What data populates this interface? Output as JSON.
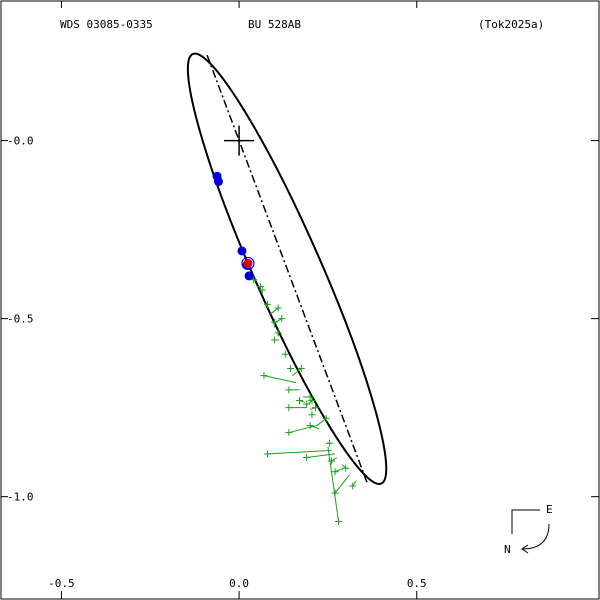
{
  "header": {
    "left": "WDS 03085-0335",
    "center": "BU  528AB",
    "right": "(Tok2025a)"
  },
  "compass": {
    "east": "E",
    "north": "N"
  },
  "colors": {
    "axes": "#000000",
    "orbit": "#000000",
    "observations": "#1aa01a",
    "points": "#0000dd",
    "predicted": "#dd0000"
  },
  "chart_data": {
    "type": "scatter",
    "title": "",
    "xlabel": "",
    "ylabel": "",
    "xlim": [
      -0.58,
      0.92
    ],
    "ylim": [
      -1.22,
      0.26
    ],
    "x_ticks": [
      {
        "value": -0.5,
        "label": "-0.5"
      },
      {
        "value": 0.0,
        "label": "0.0"
      },
      {
        "value": 0.5,
        "label": "0.5"
      }
    ],
    "y_ticks": [
      {
        "value": 0.0,
        "label": "-0.0"
      },
      {
        "value": -0.5,
        "label": "-0.5"
      },
      {
        "value": -1.0,
        "label": "-1.0"
      }
    ],
    "primary_star": {
      "x": 0.0,
      "y": 0.0
    },
    "orbit_ellipse": {
      "center": [
        0.135,
        -0.36
      ],
      "semi_major": 0.66,
      "semi_minor": 0.095,
      "major_axis_angle_deg": -66.3
    },
    "line_of_nodes": {
      "from": [
        -0.09,
        0.24
      ],
      "to": [
        0.36,
        -0.96
      ]
    },
    "blue_points": [
      {
        "x": -0.062,
        "y": -0.1
      },
      {
        "x": -0.058,
        "y": -0.115
      },
      {
        "x": 0.008,
        "y": -0.31
      },
      {
        "x": 0.022,
        "y": -0.35
      },
      {
        "x": 0.028,
        "y": -0.38
      }
    ],
    "predicted_point": {
      "x": 0.025,
      "y": -0.345
    },
    "observations": [
      {
        "obs": [
          0.04,
          -0.39
        ],
        "fit": [
          0.048,
          -0.395
        ]
      },
      {
        "obs": [
          0.06,
          -0.41
        ],
        "fit": [
          0.052,
          -0.41
        ]
      },
      {
        "obs": [
          0.065,
          -0.42
        ],
        "fit": [
          0.056,
          -0.42
        ]
      },
      {
        "obs": [
          0.08,
          -0.46
        ],
        "fit": [
          0.075,
          -0.465
        ]
      },
      {
        "obs": [
          0.11,
          -0.47
        ],
        "fit": [
          0.085,
          -0.49
        ]
      },
      {
        "obs": [
          0.12,
          -0.5
        ],
        "fit": [
          0.095,
          -0.515
        ]
      },
      {
        "obs": [
          0.1,
          -0.51
        ],
        "fit": [
          0.1,
          -0.525
        ]
      },
      {
        "obs": [
          0.11,
          -0.54
        ],
        "fit": [
          0.11,
          -0.55
        ]
      },
      {
        "obs": [
          0.1,
          -0.56
        ],
        "fit": [
          0.113,
          -0.56
        ]
      },
      {
        "obs": [
          0.13,
          -0.6
        ],
        "fit": [
          0.128,
          -0.6
        ]
      },
      {
        "obs": [
          0.145,
          -0.64
        ],
        "fit": [
          0.145,
          -0.645
        ]
      },
      {
        "obs": [
          0.175,
          -0.64
        ],
        "fit": [
          0.15,
          -0.66
        ]
      },
      {
        "obs": [
          0.07,
          -0.66
        ],
        "fit": [
          0.16,
          -0.68
        ]
      },
      {
        "obs": [
          0.14,
          -0.7
        ],
        "fit": [
          0.17,
          -0.7
        ]
      },
      {
        "obs": [
          0.2,
          -0.72
        ],
        "fit": [
          0.18,
          -0.72
        ]
      },
      {
        "obs": [
          0.17,
          -0.73
        ],
        "fit": [
          0.185,
          -0.735
        ]
      },
      {
        "obs": [
          0.19,
          -0.74
        ],
        "fit": [
          0.19,
          -0.745
        ]
      },
      {
        "obs": [
          0.205,
          -0.73
        ],
        "fit": [
          0.195,
          -0.74
        ]
      },
      {
        "obs": [
          0.14,
          -0.75
        ],
        "fit": [
          0.19,
          -0.75
        ]
      },
      {
        "obs": [
          0.215,
          -0.75
        ],
        "fit": [
          0.2,
          -0.755
        ]
      },
      {
        "obs": [
          0.205,
          -0.77
        ],
        "fit": [
          0.205,
          -0.77
        ]
      },
      {
        "obs": [
          0.245,
          -0.78
        ],
        "fit": [
          0.22,
          -0.8
        ]
      },
      {
        "obs": [
          0.2,
          -0.8
        ],
        "fit": [
          0.225,
          -0.81
        ]
      },
      {
        "obs": [
          0.255,
          -0.85
        ],
        "fit": [
          0.245,
          -0.85
        ]
      },
      {
        "obs": [
          0.14,
          -0.82
        ],
        "fit": [
          0.22,
          -0.8
        ]
      },
      {
        "obs": [
          0.08,
          -0.88
        ],
        "fit": [
          0.26,
          -0.87
        ]
      },
      {
        "obs": [
          0.19,
          -0.89
        ],
        "fit": [
          0.27,
          -0.88
        ]
      },
      {
        "obs": [
          0.26,
          -0.9
        ],
        "fit": [
          0.275,
          -0.89
        ]
      },
      {
        "obs": [
          0.3,
          -0.92
        ],
        "fit": [
          0.29,
          -0.91
        ]
      },
      {
        "obs": [
          0.27,
          -0.93
        ],
        "fit": [
          0.295,
          -0.92
        ]
      },
      {
        "obs": [
          0.32,
          -0.97
        ],
        "fit": [
          0.33,
          -0.955
        ]
      },
      {
        "obs": [
          0.27,
          -0.99
        ],
        "fit": [
          0.31,
          -0.94
        ]
      },
      {
        "obs": [
          0.28,
          -1.07
        ],
        "fit": [
          0.25,
          -0.86
        ]
      }
    ]
  }
}
